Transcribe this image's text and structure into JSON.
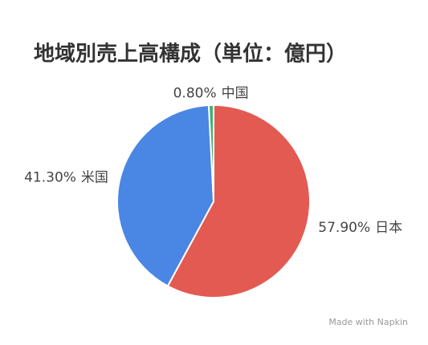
{
  "chart_data": {
    "type": "pie",
    "title": "地域別売上高構成（単位：億円）",
    "categories": [
      "日本",
      "米国",
      "中国"
    ],
    "values": [
      57.9,
      41.3,
      0.8
    ],
    "value_labels": [
      "57.90%",
      "41.30%",
      "0.80%"
    ],
    "colors": [
      "#e35a52",
      "#4a86e3",
      "#3cb371"
    ]
  },
  "watermark": "Made with Napkin"
}
